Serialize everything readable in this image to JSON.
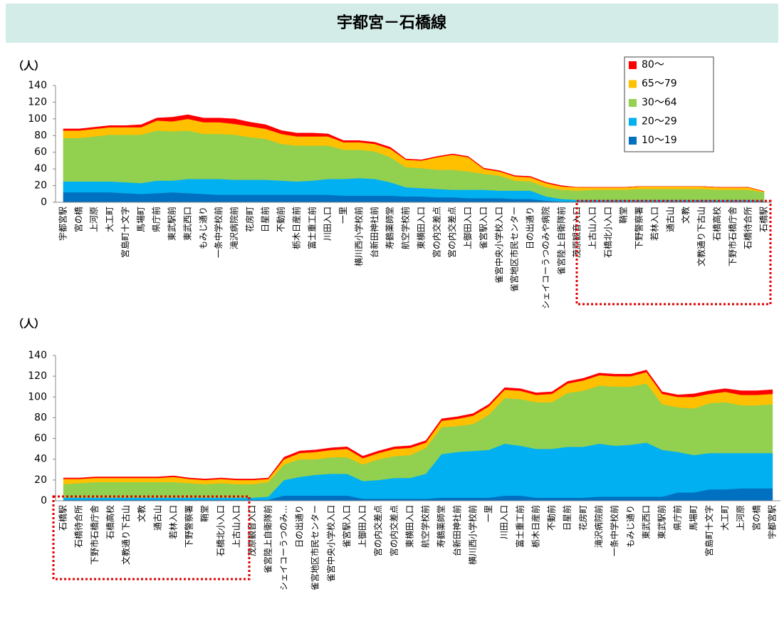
{
  "title": "宇都宮－石橋線",
  "chart_data": [
    {
      "type": "area",
      "stacked": true,
      "ylabel": "（人）",
      "categories": [
        "宇都宮駅",
        "宮の橋",
        "上河原",
        "大工町",
        "宮島町十文字",
        "馬場町",
        "県庁前",
        "東武駅前",
        "東武西口",
        "もみじ通り",
        "一条中学校前",
        "滝沢病院前",
        "花房町",
        "日星前",
        "不動前",
        "栃木日産前",
        "富士重工前",
        "川田入口",
        "一里",
        "横川西小学校前",
        "台新田神社前",
        "寿鶴薬師堂",
        "航空学校前",
        "東横田入口",
        "宮の内交差点",
        "宮の内交差点",
        "上御田入口",
        "雀宮駅入口",
        "雀宮中央小学校入口",
        "雀宮地区市民センター",
        "日の出通り",
        "シェイコーうつのみや病院",
        "雀宮陸上自衛隊前",
        "茂原観音入口",
        "上古山入口",
        "石橋北小入口",
        "鞘堂",
        "下野警察署",
        "若林入口",
        "通古山",
        "文教",
        "文教通り下古山",
        "石橋高校",
        "下野市石橋庁舎",
        "石橋待合所",
        "石橋駅"
      ],
      "series": [
        {
          "name": "10～19",
          "color": "#0070c0",
          "values": [
            12,
            12,
            12,
            12,
            11,
            10,
            11,
            12,
            11,
            10,
            9,
            9,
            9,
            9,
            9,
            9,
            9,
            9,
            8,
            8,
            8,
            8,
            7,
            7,
            6,
            6,
            5,
            5,
            5,
            4,
            4,
            2,
            1,
            1,
            1,
            1,
            1,
            1,
            1,
            1,
            1,
            1,
            1,
            1,
            1,
            1
          ]
        },
        {
          "name": "20～29",
          "color": "#00b0f0",
          "values": [
            13,
            13,
            13,
            13,
            13,
            13,
            15,
            14,
            17,
            18,
            19,
            18,
            18,
            18,
            17,
            16,
            17,
            19,
            20,
            21,
            20,
            16,
            11,
            10,
            10,
            9,
            10,
            10,
            9,
            10,
            10,
            5,
            3,
            2,
            2,
            2,
            2,
            2,
            2,
            2,
            2,
            2,
            2,
            2,
            2,
            1
          ]
        },
        {
          "name": "30～64",
          "color": "#92d050",
          "values": [
            52,
            52,
            54,
            56,
            57,
            58,
            60,
            59,
            58,
            54,
            54,
            54,
            51,
            49,
            44,
            43,
            42,
            40,
            35,
            34,
            33,
            30,
            24,
            24,
            23,
            24,
            22,
            19,
            18,
            12,
            11,
            11,
            11,
            11,
            12,
            12,
            12,
            13,
            13,
            13,
            13,
            13,
            12,
            12,
            12,
            10
          ]
        },
        {
          "name": "65～79",
          "color": "#ffc000",
          "values": [
            9,
            9,
            9,
            9,
            9,
            9,
            12,
            12,
            14,
            14,
            14,
            13,
            13,
            12,
            12,
            11,
            11,
            11,
            9,
            9,
            9,
            10,
            9,
            9,
            15,
            18,
            17,
            6,
            5,
            5,
            5,
            5,
            4,
            4,
            3,
            3,
            3,
            3,
            3,
            3,
            3,
            3,
            3,
            3,
            3,
            1
          ]
        },
        {
          "name": "80～",
          "color": "#ff0000",
          "values": [
            2,
            2,
            2,
            2,
            2,
            3,
            3,
            5,
            5,
            5,
            5,
            6,
            5,
            5,
            4,
            4,
            4,
            3,
            2,
            2,
            2,
            2,
            1,
            1,
            1,
            1,
            1,
            1,
            1,
            1,
            1,
            1,
            1,
            0,
            0,
            0,
            0,
            0,
            0,
            0,
            0,
            0,
            0,
            0,
            0,
            0
          ]
        }
      ],
      "ylim": [
        0,
        140
      ],
      "yticks": [
        0,
        20,
        40,
        60,
        80,
        100,
        120,
        140
      ],
      "legend": "top-right"
    },
    {
      "type": "area",
      "stacked": true,
      "ylabel": "（人）",
      "categories": [
        "石橋駅",
        "石橋待合所",
        "下野市石橋庁舎",
        "石橋高校",
        "文教通り下古山",
        "文教",
        "通古山",
        "若林入口",
        "下野警察署",
        "鞘堂",
        "石橋北小入口",
        "上古山入口",
        "茂原観音入口",
        "雀宮陸上自衛隊前",
        "シェイコーうつのみ…",
        "日の出通り",
        "雀宮地区市民センター",
        "雀宮中央小学校入口",
        "雀宮駅入口",
        "上御田入口",
        "宮の内交差点",
        "宮の内交差点",
        "東横田入口",
        "航空学校前",
        "寿鶴薬師堂",
        "台新田神社前",
        "横川西小学校前",
        "一里",
        "川田入口",
        "富士重工前",
        "栃木日産前",
        "不動前",
        "日星前",
        "花房町",
        "滝沢病院前",
        "一条中学校前",
        "もみじ通り",
        "東武西口",
        "東武駅前",
        "県庁前",
        "馬場町",
        "宮島町十文字",
        "大工町",
        "上河原",
        "宮の橋",
        "宇都宮駅"
      ],
      "series": [
        {
          "color": "#0070c0",
          "values": [
            1,
            1,
            1,
            1,
            1,
            1,
            1,
            1,
            1,
            1,
            1,
            1,
            1,
            1,
            5,
            5,
            5,
            5,
            5,
            2,
            2,
            2,
            2,
            2,
            3,
            3,
            3,
            3,
            5,
            5,
            3,
            3,
            3,
            3,
            4,
            4,
            4,
            4,
            4,
            8,
            8,
            11,
            11,
            12,
            12,
            12
          ]
        },
        {
          "color": "#00b0f0",
          "values": [
            2,
            2,
            2,
            2,
            2,
            2,
            2,
            2,
            2,
            2,
            2,
            2,
            2,
            3,
            15,
            18,
            20,
            21,
            21,
            17,
            18,
            20,
            20,
            24,
            42,
            44,
            45,
            46,
            50,
            48,
            47,
            47,
            49,
            49,
            51,
            49,
            50,
            52,
            45,
            39,
            36,
            35,
            35,
            34,
            34,
            34
          ]
        },
        {
          "color": "#92d050",
          "values": [
            13,
            14,
            15,
            15,
            15,
            15,
            15,
            15,
            14,
            13,
            14,
            13,
            13,
            14,
            15,
            17,
            15,
            16,
            16,
            16,
            20,
            21,
            22,
            25,
            26,
            25,
            26,
            34,
            44,
            45,
            45,
            45,
            52,
            54,
            56,
            57,
            56,
            57,
            44,
            43,
            45,
            48,
            49,
            46,
            46,
            47
          ]
        },
        {
          "color": "#ffc000",
          "values": [
            5,
            4,
            4,
            4,
            4,
            4,
            4,
            5,
            4,
            4,
            4,
            4,
            4,
            3,
            5,
            6,
            7,
            7,
            8,
            6,
            6,
            7,
            7,
            5,
            6,
            7,
            8,
            8,
            8,
            8,
            7,
            8,
            9,
            10,
            10,
            10,
            10,
            11,
            10,
            10,
            11,
            9,
            10,
            10,
            10,
            10
          ]
        },
        {
          "color": "#ff0000",
          "values": [
            1,
            1,
            1,
            1,
            1,
            1,
            1,
            1,
            1,
            1,
            1,
            1,
            1,
            1,
            2,
            2,
            2,
            2,
            2,
            2,
            2,
            2,
            2,
            2,
            2,
            2,
            2,
            2,
            2,
            2,
            2,
            2,
            2,
            2,
            2,
            2,
            2,
            2,
            2,
            2,
            3,
            3,
            3,
            4,
            4,
            4
          ]
        }
      ],
      "ylim": [
        0,
        140
      ],
      "yticks": [
        0,
        20,
        40,
        60,
        80,
        100,
        120,
        140
      ],
      "legend": false
    }
  ]
}
